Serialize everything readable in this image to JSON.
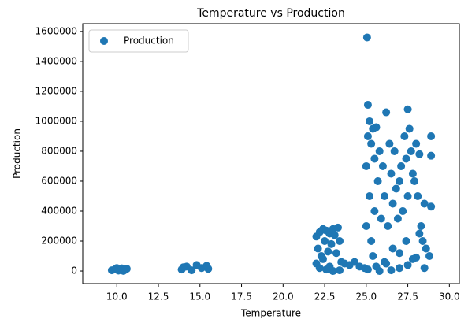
{
  "chart_data": {
    "type": "scatter",
    "title": "Temperature vs Production",
    "x_label": "Temperature",
    "y_label": "Production",
    "legend": "upper left",
    "grid": false,
    "xlim": [
      7.95,
      30.6
    ],
    "ylim": [
      -84000,
      1652000
    ],
    "xticks": [
      {
        "value": 10,
        "label": "10.0"
      },
      12.5,
      {
        "value": 15,
        "label": "15.0"
      },
      17.5,
      {
        "value": 20,
        "label": "20.0"
      },
      22.5,
      {
        "value": 25,
        "label": "25.0"
      },
      27.5,
      {
        "value": 30,
        "label": "30.0"
      }
    ],
    "yticks": [
      0,
      200000,
      400000,
      600000,
      800000,
      1000000,
      1200000,
      1400000,
      1600000
    ],
    "series": [
      {
        "name": "Production",
        "color": "#1f77b4",
        "x": [
          9.7,
          9.9,
          10.1,
          10.3,
          10.5,
          10.6,
          10.0,
          10.4,
          13.9,
          14.2,
          14.5,
          14.8,
          15.1,
          15.4,
          14.0,
          15.5,
          22.0,
          22.0,
          22.1,
          22.2,
          22.3,
          22.4,
          22.5,
          22.6,
          22.7,
          22.8,
          22.9,
          23.0,
          23.1,
          23.2,
          23.3,
          23.4,
          23.5,
          22.2,
          22.6,
          23.0,
          23.4,
          22.4,
          22.8,
          23.7,
          24.0,
          24.3,
          24.6,
          24.9,
          25.0,
          25.0,
          25.05,
          25.1,
          25.1,
          25.2,
          25.2,
          25.3,
          25.3,
          25.4,
          25.5,
          25.5,
          25.6,
          25.7,
          25.8,
          25.9,
          26.0,
          26.1,
          26.2,
          26.3,
          26.4,
          26.5,
          26.6,
          26.7,
          26.8,
          26.9,
          27.0,
          27.1,
          27.2,
          27.3,
          27.4,
          27.5,
          27.5,
          27.6,
          27.7,
          27.8,
          27.9,
          28.0,
          28.1,
          28.2,
          28.3,
          28.4,
          28.5,
          28.6,
          28.8,
          28.9,
          28.9,
          28.9,
          25.4,
          25.8,
          26.2,
          26.6,
          27.0,
          27.4,
          27.8,
          28.2,
          25.1,
          25.6,
          26.1,
          26.5,
          27.0,
          27.5,
          28.0,
          28.5
        ],
        "values": [
          5000,
          12000,
          3000,
          18000,
          8000,
          15000,
          20000,
          1000,
          10000,
          30000,
          5000,
          40000,
          20000,
          35000,
          25000,
          15000,
          50000,
          230000,
          150000,
          260000,
          100000,
          280000,
          200000,
          270000,
          130000,
          250000,
          180000,
          280000,
          240000,
          120000,
          290000,
          200000,
          60000,
          20000,
          10000,
          0,
          5000,
          80000,
          30000,
          50000,
          40000,
          60000,
          30000,
          20000,
          700000,
          300000,
          1560000,
          1110000,
          900000,
          1000000,
          500000,
          850000,
          200000,
          950000,
          750000,
          400000,
          960000,
          600000,
          800000,
          350000,
          700000,
          500000,
          1060000,
          300000,
          850000,
          650000,
          450000,
          800000,
          550000,
          350000,
          600000,
          700000,
          400000,
          900000,
          750000,
          1080000,
          500000,
          950000,
          800000,
          650000,
          600000,
          850000,
          500000,
          780000,
          300000,
          200000,
          450000,
          150000,
          100000,
          900000,
          770000,
          430000,
          100000,
          0,
          50000,
          150000,
          20000,
          200000,
          80000,
          250000,
          10000,
          30000,
          60000,
          5000,
          120000,
          40000,
          90000,
          20000
        ]
      }
    ]
  }
}
